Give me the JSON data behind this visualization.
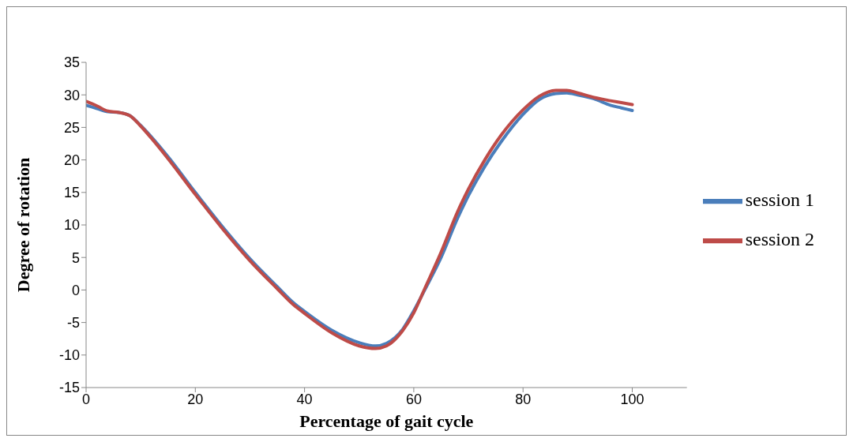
{
  "chart_data": {
    "type": "line",
    "xlabel": "Percentage of gait cycle",
    "ylabel": "Degree of rotation",
    "xlim": [
      0,
      110
    ],
    "xticks": [
      0,
      20,
      40,
      60,
      80,
      100
    ],
    "ylim": [
      -15,
      35
    ],
    "yticks": [
      -15,
      -10,
      -5,
      0,
      5,
      10,
      15,
      20,
      25,
      30,
      35
    ],
    "grid": false,
    "legend": "right",
    "marker": "none",
    "line_style": "solid",
    "series": [
      {
        "name": "session 1",
        "color": "#4a7ebb",
        "x": [
          0,
          2,
          4,
          6,
          8,
          10,
          12,
          15,
          20,
          25,
          30,
          35,
          38,
          40,
          45,
          50,
          53,
          55,
          58,
          60,
          62,
          65,
          68,
          70,
          73,
          76,
          80,
          83,
          86,
          88,
          90,
          93,
          96,
          98,
          100
        ],
        "values": [
          28.4,
          27.9,
          27.4,
          27.3,
          26.8,
          25.3,
          23.5,
          20.5,
          15.0,
          9.7,
          4.8,
          0.5,
          -2.0,
          -3.3,
          -6.2,
          -8.1,
          -8.6,
          -8.2,
          -6.0,
          -3.2,
          0,
          5,
          11,
          14.5,
          19,
          22.8,
          27,
          29.3,
          30.2,
          30.3,
          30.0,
          29.4,
          28.4,
          28.0,
          27.6
        ]
      },
      {
        "name": "session 2",
        "color": "#be4b48",
        "x": [
          0,
          2,
          4,
          6,
          8,
          10,
          12,
          15,
          20,
          25,
          30,
          35,
          38,
          40,
          45,
          50,
          53,
          55,
          58,
          60,
          62,
          65,
          68,
          70,
          73,
          76,
          80,
          83,
          86,
          88,
          90,
          93,
          96,
          98,
          100
        ],
        "values": [
          29.0,
          28.3,
          27.5,
          27.3,
          26.8,
          25.2,
          23.3,
          20.2,
          14.7,
          9.4,
          4.5,
          0.2,
          -2.3,
          -3.6,
          -6.6,
          -8.6,
          -9.0,
          -8.6,
          -6.2,
          -3.5,
          0.2,
          5.8,
          12,
          15.5,
          20,
          23.8,
          27.7,
          29.8,
          30.7,
          30.7,
          30.3,
          29.6,
          29.1,
          28.8,
          28.5
        ]
      }
    ]
  }
}
